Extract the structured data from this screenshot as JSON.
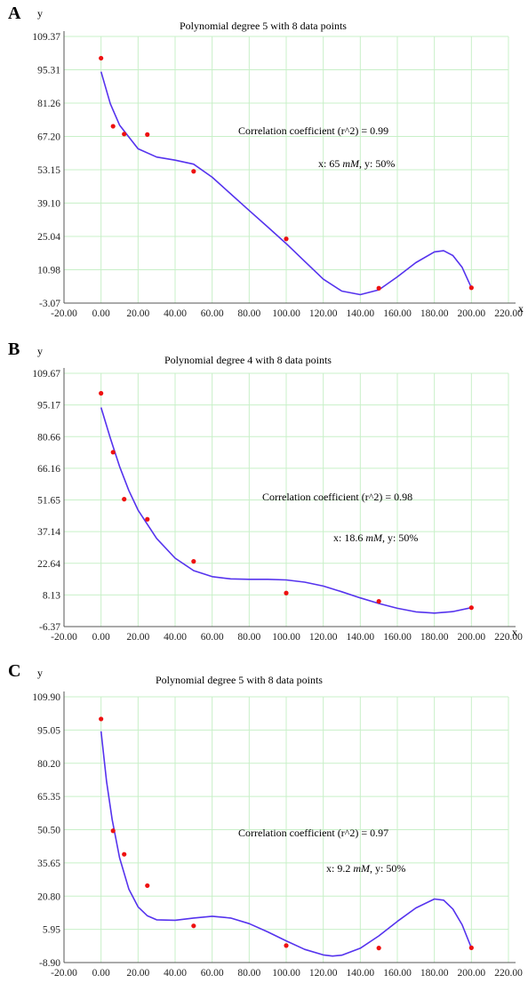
{
  "chart_data": [
    {
      "panel": "A",
      "type": "scatter",
      "title": "Polynomial degree 5 with 8 data points",
      "xlabel": "x",
      "ylabel": "y",
      "y_ticks": [
        "-3.07",
        "10.98",
        "25.04",
        "39.10",
        "53.15",
        "67.20",
        "81.26",
        "95.31",
        "109.37"
      ],
      "x_ticks": [
        "-20.00",
        "0.00",
        "20.00",
        "40.00",
        "60.00",
        "80.00",
        "100.00",
        "120.00",
        "140.00",
        "160.00",
        "180.00",
        "200.00",
        "220.00"
      ],
      "xlim": [
        -20,
        220
      ],
      "ylim": [
        -3.07,
        109.37
      ],
      "points": [
        {
          "x": 0,
          "y": 100.2
        },
        {
          "x": 6.5,
          "y": 71.5
        },
        {
          "x": 12.5,
          "y": 68.2
        },
        {
          "x": 25,
          "y": 68.0
        },
        {
          "x": 50,
          "y": 52.5
        },
        {
          "x": 100,
          "y": 24.0
        },
        {
          "x": 150,
          "y": 3.2
        },
        {
          "x": 200,
          "y": 3.4
        }
      ],
      "curve": [
        [
          0,
          94.5
        ],
        [
          5,
          81
        ],
        [
          10,
          72
        ],
        [
          20,
          62
        ],
        [
          30,
          58.5
        ],
        [
          40,
          57.2
        ],
        [
          50,
          55.5
        ],
        [
          60,
          50
        ],
        [
          70,
          43
        ],
        [
          80,
          36
        ],
        [
          90,
          29
        ],
        [
          100,
          22
        ],
        [
          110,
          14.5
        ],
        [
          120,
          7
        ],
        [
          130,
          2
        ],
        [
          140,
          0.5
        ],
        [
          150,
          2.5
        ],
        [
          160,
          8
        ],
        [
          170,
          14
        ],
        [
          180,
          18.5
        ],
        [
          185,
          19
        ],
        [
          190,
          17
        ],
        [
          195,
          12
        ],
        [
          200,
          3.4
        ]
      ],
      "annotations": [
        "Correlation coefficient (r^2) = 0.99",
        "x: 65 ",
        "mM",
        ", y: 50%"
      ],
      "colors": {
        "curve": "#5533ee",
        "points": "#ee1111",
        "grid": "#c8f0c8"
      },
      "grid": true
    },
    {
      "panel": "B",
      "type": "scatter",
      "title": "Polynomial degree 4 with 8 data points",
      "xlabel": "x",
      "ylabel": "y",
      "y_ticks": [
        "-6.37",
        "8.13",
        "22.64",
        "37.14",
        "51.65",
        "66.16",
        "80.66",
        "95.17",
        "109.67"
      ],
      "x_ticks": [
        "-20.00",
        "0.00",
        "20.00",
        "40.00",
        "60.00",
        "80.00",
        "100.00",
        "120.00",
        "140.00",
        "160.00",
        "180.00",
        "200.00",
        "220.00"
      ],
      "xlim": [
        -20,
        220
      ],
      "ylim": [
        -6.37,
        109.67
      ],
      "points": [
        {
          "x": 0,
          "y": 100.5
        },
        {
          "x": 6.5,
          "y": 73.5
        },
        {
          "x": 12.5,
          "y": 52.0
        },
        {
          "x": 25,
          "y": 42.8
        },
        {
          "x": 50,
          "y": 23.5
        },
        {
          "x": 100,
          "y": 9.0
        },
        {
          "x": 150,
          "y": 5.2
        },
        {
          "x": 200,
          "y": 2.3
        }
      ],
      "curve": [
        [
          0,
          94
        ],
        [
          5,
          80
        ],
        [
          10,
          67
        ],
        [
          15,
          56
        ],
        [
          20,
          47
        ],
        [
          30,
          34
        ],
        [
          40,
          25
        ],
        [
          50,
          19.3
        ],
        [
          60,
          16.5
        ],
        [
          70,
          15.5
        ],
        [
          80,
          15.3
        ],
        [
          90,
          15.3
        ],
        [
          100,
          15
        ],
        [
          110,
          14
        ],
        [
          120,
          12.2
        ],
        [
          130,
          9.6
        ],
        [
          140,
          6.8
        ],
        [
          150,
          4.2
        ],
        [
          160,
          2
        ],
        [
          170,
          0.4
        ],
        [
          180,
          -0.2
        ],
        [
          190,
          0.5
        ],
        [
          200,
          2.3
        ]
      ],
      "annotations": [
        "Correlation coefficient (r^2) = 0.98",
        "x: 18.6 ",
        "mM",
        ", y: 50%"
      ],
      "colors": {
        "curve": "#5533ee",
        "points": "#ee1111",
        "grid": "#c8f0c8"
      },
      "grid": true
    },
    {
      "panel": "C",
      "type": "scatter",
      "title": "Polynomial degree 5 with 8 data points",
      "xlabel": "x",
      "ylabel": "y",
      "y_ticks": [
        "-8.90",
        "5.95",
        "20.80",
        "35.65",
        "50.50",
        "65.35",
        "80.20",
        "95.05",
        "109.90"
      ],
      "x_ticks": [
        "-20.00",
        "0.00",
        "20.00",
        "40.00",
        "60.00",
        "80.00",
        "100.00",
        "120.00",
        "140.00",
        "160.00",
        "180.00",
        "200.00",
        "220.00"
      ],
      "xlim": [
        -20,
        220
      ],
      "ylim": [
        -8.9,
        109.9
      ],
      "points": [
        {
          "x": 0,
          "y": 100.0
        },
        {
          "x": 6.5,
          "y": 50.0
        },
        {
          "x": 12.5,
          "y": 39.5
        },
        {
          "x": 25,
          "y": 25.5
        },
        {
          "x": 50,
          "y": 7.5
        },
        {
          "x": 100,
          "y": -1.3
        },
        {
          "x": 150,
          "y": -2.4
        },
        {
          "x": 200,
          "y": -2.3
        }
      ],
      "curve": [
        [
          0,
          94.5
        ],
        [
          3,
          72
        ],
        [
          6,
          55
        ],
        [
          10,
          38
        ],
        [
          15,
          24
        ],
        [
          20,
          16
        ],
        [
          25,
          12
        ],
        [
          30,
          10.2
        ],
        [
          40,
          10
        ],
        [
          50,
          11
        ],
        [
          60,
          11.8
        ],
        [
          70,
          11
        ],
        [
          80,
          8.5
        ],
        [
          90,
          4.8
        ],
        [
          100,
          0.8
        ],
        [
          110,
          -3
        ],
        [
          120,
          -5.5
        ],
        [
          125,
          -6
        ],
        [
          130,
          -5.6
        ],
        [
          140,
          -2.5
        ],
        [
          150,
          3
        ],
        [
          160,
          9.5
        ],
        [
          170,
          15.5
        ],
        [
          180,
          19.5
        ],
        [
          185,
          19
        ],
        [
          190,
          15
        ],
        [
          195,
          8
        ],
        [
          200,
          -2.3
        ]
      ],
      "annotations": [
        "Correlation coefficient (r^2) = 0.97",
        "x: 9.2 ",
        "mM",
        ", y: 50%"
      ],
      "colors": {
        "curve": "#5533ee",
        "points": "#ee1111",
        "grid": "#c8f0c8"
      },
      "grid": true
    }
  ]
}
